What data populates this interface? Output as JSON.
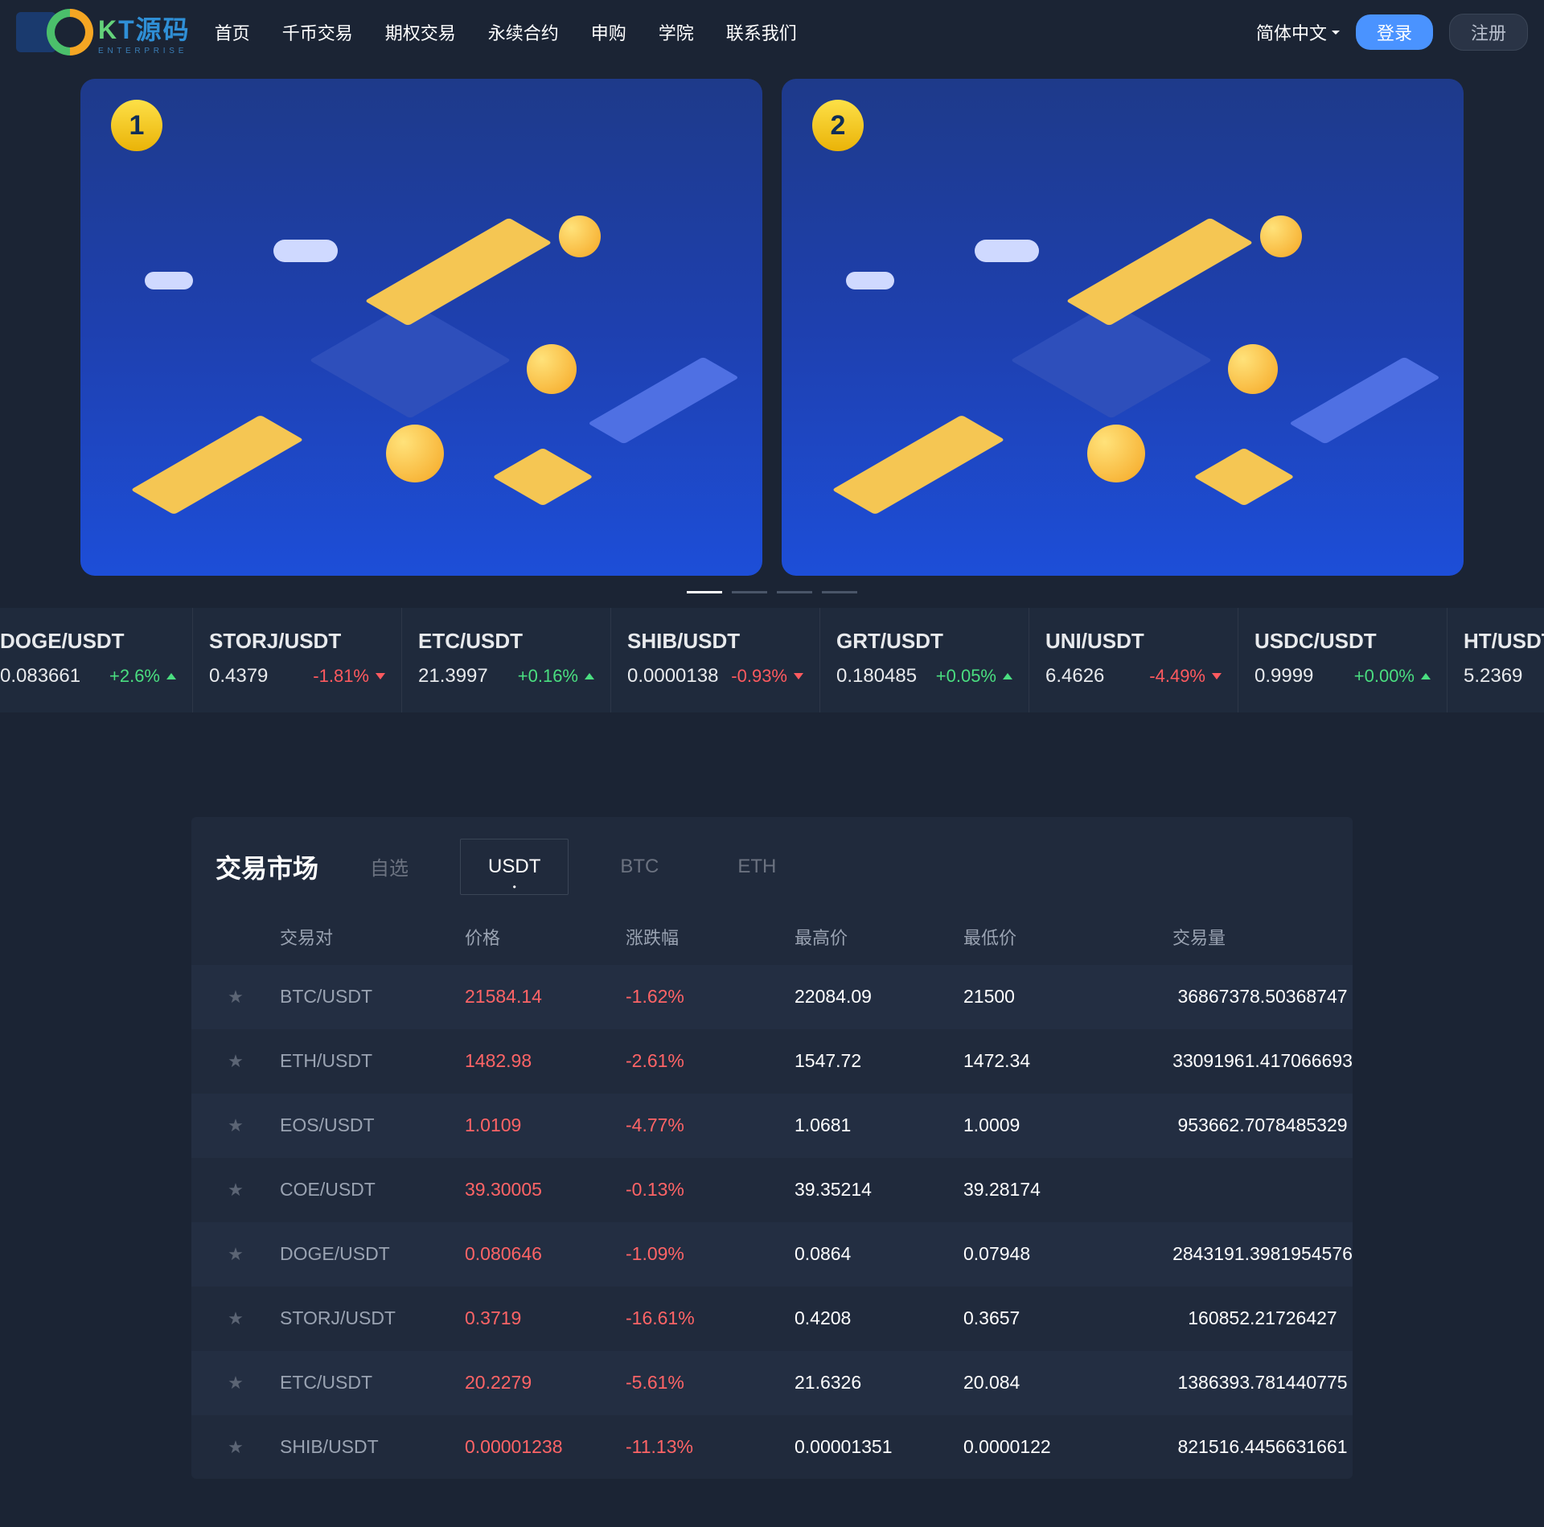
{
  "header": {
    "logo_text_chars": [
      "K",
      "T",
      "源",
      "码"
    ],
    "logo_subtitle": "E N T E R P R I S E",
    "nav": [
      "首页",
      "千币交易",
      "期权交易",
      "永续合约",
      "申购",
      "学院",
      "联系我们"
    ],
    "language": "简体中文",
    "login_label": "登录",
    "register_label": "注册"
  },
  "hero": {
    "card1_num": "1",
    "card2_num": "2",
    "indicator_count": 4,
    "active_indicator": 0
  },
  "ticker": [
    {
      "pair": "DOGE/USDT",
      "price": "0.083661",
      "change": "+2.6%",
      "dir": "up"
    },
    {
      "pair": "STORJ/USDT",
      "price": "0.4379",
      "change": "-1.81%",
      "dir": "down"
    },
    {
      "pair": "ETC/USDT",
      "price": "21.3997",
      "change": "+0.16%",
      "dir": "up"
    },
    {
      "pair": "SHIB/USDT",
      "price": "0.0000138",
      "change": "-0.93%",
      "dir": "down"
    },
    {
      "pair": "GRT/USDT",
      "price": "0.180485",
      "change": "+0.05%",
      "dir": "up"
    },
    {
      "pair": "UNI/USDT",
      "price": "6.4626",
      "change": "-4.49%",
      "dir": "down"
    },
    {
      "pair": "USDC/USDT",
      "price": "0.9999",
      "change": "+0.00%",
      "dir": "up"
    },
    {
      "pair": "HT/USDT",
      "price": "5.2369",
      "change": "",
      "dir": ""
    }
  ],
  "market": {
    "title": "交易市场",
    "tabs": [
      "自选",
      "USDT",
      "BTC",
      "ETH"
    ],
    "active_tab_idx": 1,
    "columns": [
      "交易对",
      "价格",
      "涨跌幅",
      "最高价",
      "最低价",
      "交易量"
    ],
    "rows": [
      {
        "pair": "BTC/USDT",
        "price": "21584.14",
        "change": "-1.62%",
        "high": "22084.09",
        "low": "21500",
        "vol": "36867378.50368747"
      },
      {
        "pair": "ETH/USDT",
        "price": "1482.98",
        "change": "-2.61%",
        "high": "1547.72",
        "low": "1472.34",
        "vol": "33091961.417066693"
      },
      {
        "pair": "EOS/USDT",
        "price": "1.0109",
        "change": "-4.77%",
        "high": "1.0681",
        "low": "1.0009",
        "vol": "953662.7078485329"
      },
      {
        "pair": "COE/USDT",
        "price": "39.30005",
        "change": "-0.13%",
        "high": "39.35214",
        "low": "39.28174",
        "vol": ""
      },
      {
        "pair": "DOGE/USDT",
        "price": "0.080646",
        "change": "-1.09%",
        "high": "0.0864",
        "low": "0.07948",
        "vol": "2843191.3981954576"
      },
      {
        "pair": "STORJ/USDT",
        "price": "0.3719",
        "change": "-16.61%",
        "high": "0.4208",
        "low": "0.3657",
        "vol": "160852.21726427"
      },
      {
        "pair": "ETC/USDT",
        "price": "20.2279",
        "change": "-5.61%",
        "high": "21.6326",
        "low": "20.084",
        "vol": "1386393.781440775"
      },
      {
        "pair": "SHIB/USDT",
        "price": "0.00001238",
        "change": "-11.13%",
        "high": "0.00001351",
        "low": "0.0000122",
        "vol": "821516.4456631661"
      }
    ]
  },
  "colors": {
    "bg": "#1b2434",
    "panel": "#202a3c",
    "row_alt": "#232e42",
    "ticker_bg": "#1f2a3c",
    "text": "#e8eaed",
    "muted": "#9aa3b2",
    "up": "#4ade80",
    "down": "#ff5a5f",
    "price_red": "#ff6466",
    "login_btn": "#4a93ff"
  }
}
